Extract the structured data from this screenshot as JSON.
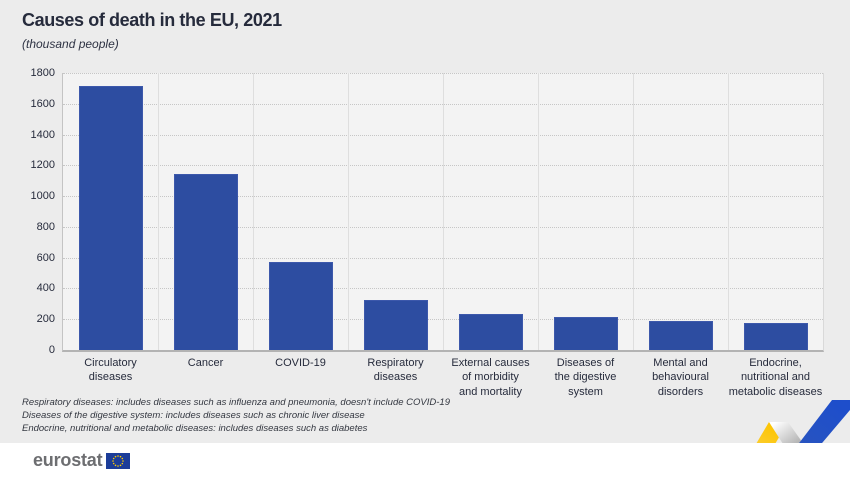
{
  "title": "Causes of death in the EU, 2021",
  "subtitle": "(thousand people)",
  "chart_data": {
    "type": "bar",
    "title": "Causes of death in the EU, 2021",
    "subtitle": "(thousand people)",
    "categories": [
      "Circulatory diseases",
      "Cancer",
      "COVID-19",
      "Respiratory diseases",
      "External causes of morbidity and mortality",
      "Diseases of the digestive system",
      "Mental and behavioural disorders",
      "Endocrine, nutritional and metabolic diseases"
    ],
    "category_label_lines": [
      [
        "Circulatory diseases"
      ],
      [
        "Cancer"
      ],
      [
        "COVID-19"
      ],
      [
        "Respiratory diseases"
      ],
      [
        "External causes",
        "of morbidity",
        "and mortality"
      ],
      [
        "Diseases of",
        "the digestive system"
      ],
      [
        "Mental and",
        "behavioural disorders"
      ],
      [
        "Endocrine,",
        "nutritional and",
        "metabolic diseases"
      ]
    ],
    "values": [
      1713,
      1145,
      570,
      326,
      237,
      214,
      191,
      176
    ],
    "xlabel": "",
    "ylabel": "",
    "ylim": [
      0,
      1800
    ],
    "yticks": [
      0,
      200,
      400,
      600,
      800,
      1000,
      1200,
      1400,
      1600,
      1800
    ],
    "grid": "horizontal-dotted",
    "legend_position": "none",
    "bar_color": "#2d4da1"
  },
  "footnotes": {
    "0": "Respiratory diseases: includes diseases such as influenza and pneumonia, doesn't include COVID-19",
    "1": "Diseases of the digestive system: includes diseases such as chronic liver disease",
    "2": "Endocrine, nutritional and metabolic diseases: includes diseases such as diabetes"
  },
  "footer": {
    "logo_text": "eurostat"
  },
  "colors": {
    "bar": "#2d4da1",
    "background": "#ececec",
    "plot_background": "#f3f3f3",
    "title_text": "#262b3c",
    "footer_background": "#ffffff",
    "logo_text": "#6d6e71",
    "eu_flag_blue": "#1c3d99",
    "eu_star_yellow": "#ffcc00",
    "ribbon_yellow": "#fcc400",
    "ribbon_blue": "#2352c9",
    "ribbon_gray": "#9b9b9b"
  }
}
